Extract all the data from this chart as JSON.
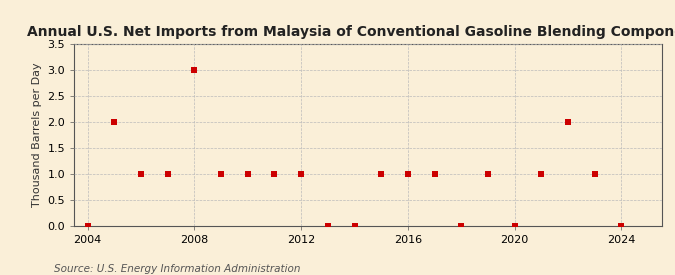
{
  "title": "Annual U.S. Net Imports from Malaysia of Conventional Gasoline Blending Components",
  "ylabel": "Thousand Barrels per Day",
  "source": "Source: U.S. Energy Information Administration",
  "background_color": "#faefd8",
  "plot_bg_color": "#faefd8",
  "years": [
    2004,
    2005,
    2006,
    2007,
    2008,
    2009,
    2010,
    2011,
    2012,
    2013,
    2014,
    2015,
    2016,
    2017,
    2018,
    2019,
    2020,
    2021,
    2022,
    2023,
    2024
  ],
  "values": [
    0,
    2,
    1,
    1,
    3,
    1,
    1,
    1,
    1,
    0,
    0,
    1,
    1,
    1,
    0,
    1,
    0,
    1,
    2,
    1,
    0
  ],
  "marker_color": "#cc0000",
  "marker_size": 5,
  "xlim": [
    2003.5,
    2025.5
  ],
  "ylim": [
    0,
    3.5
  ],
  "yticks": [
    0.0,
    0.5,
    1.0,
    1.5,
    2.0,
    2.5,
    3.0,
    3.5
  ],
  "xticks": [
    2004,
    2008,
    2012,
    2016,
    2020,
    2024
  ],
  "grid_color": "#bbbbbb",
  "title_fontsize": 10,
  "ylabel_fontsize": 8,
  "source_fontsize": 7.5,
  "tick_fontsize": 8
}
